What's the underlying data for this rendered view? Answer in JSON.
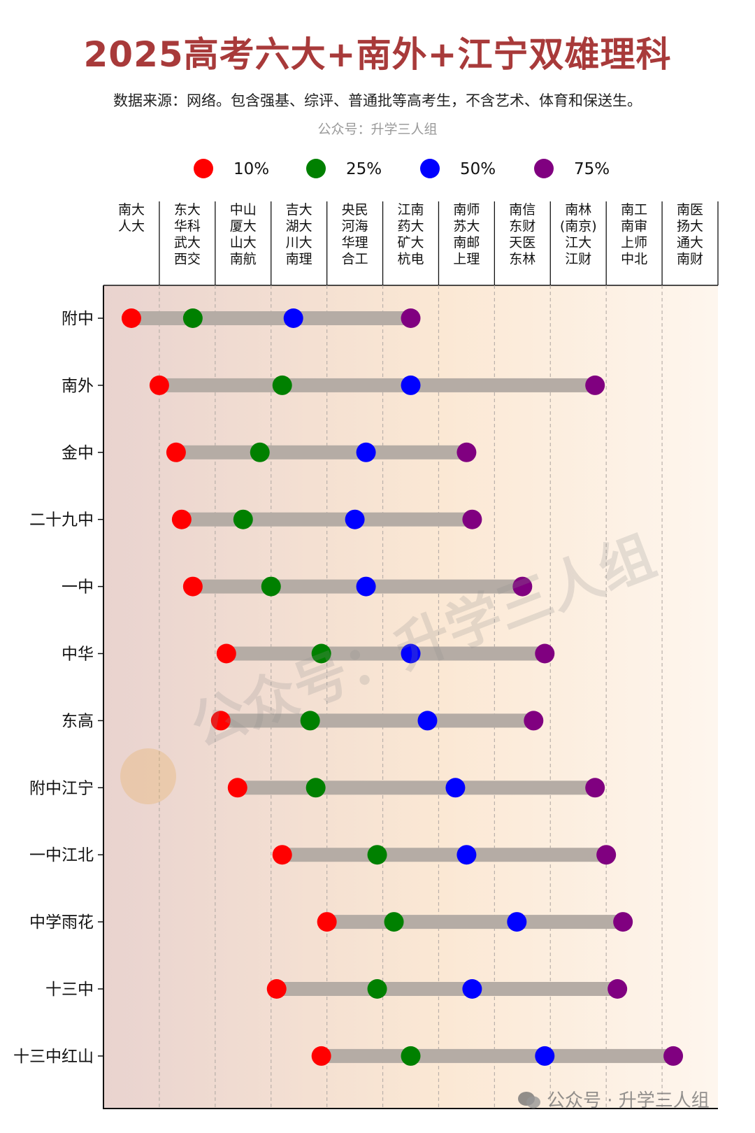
{
  "title": "2025高考六大+南外+江宁双雄理科",
  "subtitle": "数据来源：网络。包含强基、综评、普通批等高考生，不含艺术、体育和保送生。",
  "source": "公众号：升学三人组",
  "watermark": "公众号：升学三人组",
  "footer": "公众号 · 升学三人组",
  "colors": {
    "p10": "#ff0000",
    "p25": "#008000",
    "p50": "#0000ff",
    "p75": "#800080",
    "range_bar": "#b5aca5",
    "title": "#a83a3a"
  },
  "chart_data": {
    "type": "dot-range",
    "legend": [
      "10%",
      "25%",
      "50%",
      "75%"
    ],
    "legend_position": "top",
    "x_axis": {
      "position": "top",
      "columns": [
        [
          "南大",
          "人大"
        ],
        [
          "东大",
          "华科",
          "武大",
          "西交"
        ],
        [
          "中山",
          "厦大",
          "山大",
          "南航"
        ],
        [
          "吉大",
          "湖大",
          "川大",
          "南理"
        ],
        [
          "央民",
          "河海",
          "华理",
          "合工"
        ],
        [
          "江南",
          "药大",
          "矿大",
          "杭电"
        ],
        [
          "南师",
          "苏大",
          "南邮",
          "上理"
        ],
        [
          "南信",
          "东财",
          "天医",
          "东林"
        ],
        [
          "南林",
          "(南京)",
          "江大",
          "江财"
        ],
        [
          "南工",
          "南审",
          "上师",
          "中北"
        ],
        [
          "南医",
          "扬大",
          "通大",
          "南财"
        ]
      ],
      "range": [
        0,
        11
      ],
      "unit": "column index from left (0 = left edge of 南大/人大 column)"
    },
    "grid": "vertical dashed at column boundaries",
    "series": [
      {
        "name": "10%",
        "values": [
          0.5,
          1.0,
          1.3,
          1.4,
          1.6,
          2.2,
          2.1,
          2.4,
          3.2,
          4.0,
          3.1,
          3.9
        ]
      },
      {
        "name": "25%",
        "values": [
          1.6,
          3.2,
          2.8,
          2.5,
          3.0,
          3.9,
          3.7,
          3.8,
          4.9,
          5.2,
          4.9,
          5.5
        ]
      },
      {
        "name": "50%",
        "values": [
          3.4,
          5.5,
          4.7,
          4.5,
          4.7,
          5.5,
          5.8,
          6.3,
          6.5,
          7.4,
          6.6,
          7.9
        ]
      },
      {
        "name": "75%",
        "values": [
          5.5,
          8.8,
          6.5,
          6.6,
          7.5,
          7.9,
          7.7,
          8.8,
          9.0,
          9.3,
          9.2,
          10.2
        ]
      }
    ],
    "categories": [
      "附中",
      "南外",
      "金中",
      "二十九中",
      "一中",
      "中华",
      "东高",
      "附中江宁",
      "一中江北",
      "中学雨花",
      "十三中",
      "十三中红山"
    ]
  }
}
